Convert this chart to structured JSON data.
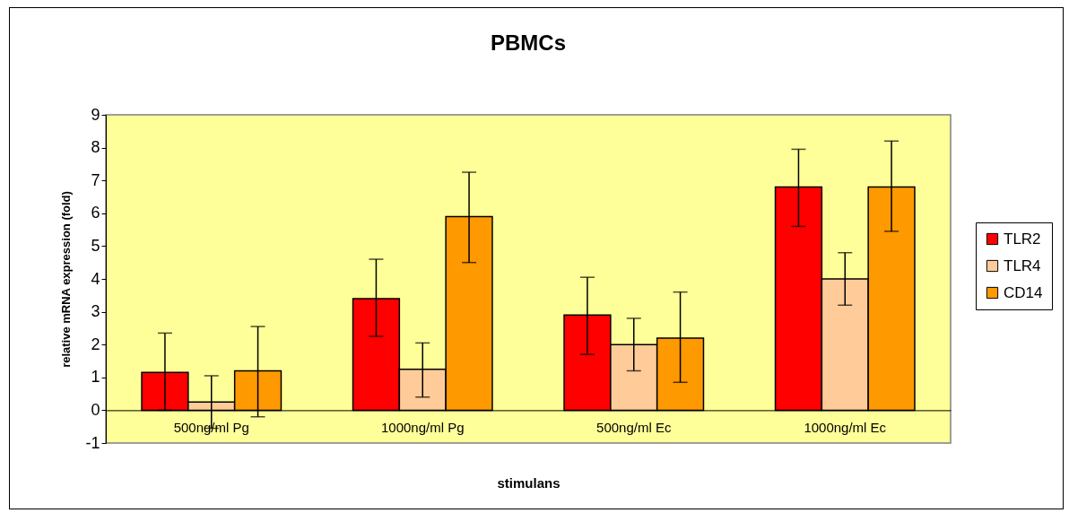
{
  "chart_data": {
    "type": "bar",
    "title": "PBMCs",
    "xlabel": "stimulans",
    "ylabel": "relative mRNA expression (fold)",
    "categories": [
      "500ng/ml Pg",
      "1000ng/ml Pg",
      "500ng/ml Ec",
      "1000ng/ml Ec"
    ],
    "series": [
      {
        "name": "TLR2",
        "color": "#ff0000",
        "values": [
          1.15,
          3.4,
          2.9,
          6.8
        ],
        "errors": [
          [
            0,
            2.35
          ],
          [
            2.25,
            4.6
          ],
          [
            1.7,
            4.05
          ],
          [
            5.6,
            7.95
          ]
        ]
      },
      {
        "name": "TLR4",
        "color": "#ffcc99",
        "values": [
          0.25,
          1.25,
          2.0,
          4.0
        ],
        "errors": [
          [
            -0.55,
            1.05
          ],
          [
            0.4,
            2.05
          ],
          [
            1.2,
            2.8
          ],
          [
            3.2,
            4.8
          ]
        ]
      },
      {
        "name": "CD14",
        "color": "#ff9900",
        "values": [
          1.2,
          5.9,
          2.2,
          6.8
        ],
        "errors": [
          [
            -0.2,
            2.55
          ],
          [
            4.5,
            7.25
          ],
          [
            0.85,
            3.6
          ],
          [
            5.45,
            8.2
          ]
        ]
      }
    ],
    "ylim": [
      -1,
      9
    ],
    "yticks": [
      -1,
      0,
      1,
      2,
      3,
      4,
      5,
      6,
      7,
      8,
      9
    ],
    "grid": false,
    "legend": "right"
  }
}
